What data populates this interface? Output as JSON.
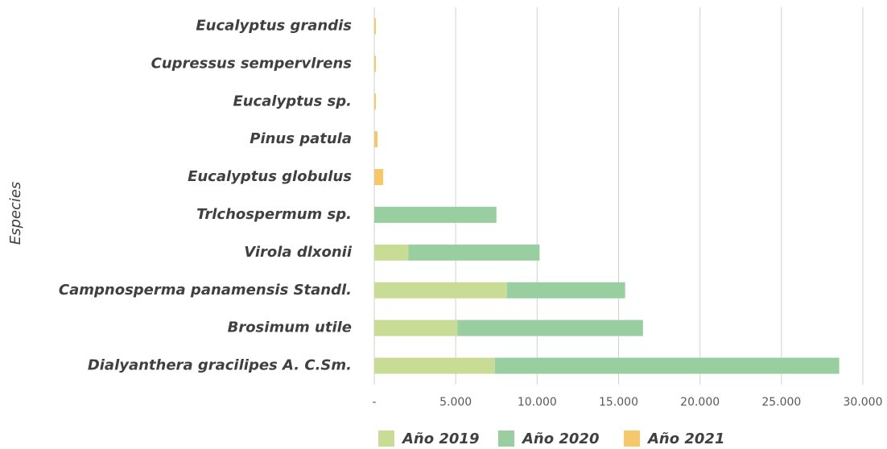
{
  "chart_data": {
    "type": "stacked-barh",
    "y_label": "Especies",
    "categories": [
      "Eucalyptus grandis",
      "Cupressus sempervlrens",
      "Eucalyptus sp.",
      "Pinus patula",
      "Eucalyptus globulus",
      "Trlchospermum sp.",
      "Virola dlxonii",
      "Campnosperma panamensis Standl.",
      "Brosimum utile",
      "Dialyanthera gracilipes A. C.Sm."
    ],
    "series": [
      {
        "name": "Año 2019",
        "color": "#c9dc96",
        "values": [
          0,
          0,
          0,
          0,
          0,
          0,
          2100,
          8150,
          5100,
          7400
        ]
      },
      {
        "name": "Año 2020",
        "color": "#99cfa0",
        "values": [
          0,
          0,
          0,
          0,
          0,
          7500,
          8050,
          7250,
          11400,
          21150
        ]
      },
      {
        "name": "Año 2021",
        "color": "#f5c96a",
        "values": [
          100,
          100,
          100,
          200,
          550,
          0,
          0,
          0,
          0,
          0
        ]
      }
    ],
    "xlim": [
      0,
      30000
    ],
    "xticks": [
      {
        "value": 0,
        "label": "-"
      },
      {
        "value": 5000,
        "label": "5.000"
      },
      {
        "value": 10000,
        "label": "10.000"
      },
      {
        "value": 15000,
        "label": "15.000"
      },
      {
        "value": 20000,
        "label": "20.000"
      },
      {
        "value": 25000,
        "label": "25.000"
      },
      {
        "value": 30000,
        "label": "30.000"
      }
    ],
    "grid": true,
    "legend": "bottom"
  }
}
